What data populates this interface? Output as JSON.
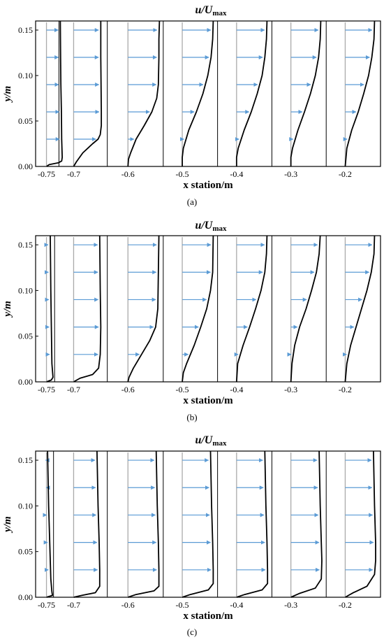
{
  "figure_panels": [
    {
      "id": "a",
      "caption": "(a)"
    },
    {
      "id": "b",
      "caption": "(b)"
    },
    {
      "id": "c",
      "caption": "(c)"
    }
  ],
  "colors": {
    "arrow": "#5b9bd5",
    "profile": "#000000",
    "baseline": "#aaaaaa",
    "axis": "#000000"
  },
  "chart_data": [
    {
      "type": "line",
      "title": "u/Umax",
      "xlabel": "x station/m",
      "ylabel": "y/m",
      "xlim": [
        -0.77,
        -0.135
      ],
      "ylim": [
        0,
        0.16
      ],
      "xticks": [
        -0.75,
        -0.7,
        -0.6,
        -0.5,
        -0.4,
        -0.3,
        -0.2
      ],
      "xtick_labels": [
        "-0.75",
        "-0.7",
        "-0.6",
        "-0.5",
        "-0.4",
        "-0.3",
        "-0.2"
      ],
      "yticks": [
        0,
        0.05,
        0.1,
        0.15
      ],
      "ytick_labels": [
        "0.00",
        "0.05",
        "0.10",
        "0.15"
      ],
      "arrow_heights": [
        0.03,
        0.06,
        0.09,
        0.12,
        0.15
      ],
      "dividers": [
        -0.727,
        -0.638,
        -0.535,
        -0.435,
        -0.335,
        -0.235
      ],
      "stations": [
        {
          "x0": -0.75,
          "points": [
            [
              0,
              -0.75
            ],
            [
              0.002,
              -0.745
            ],
            [
              0.004,
              -0.728
            ],
            [
              0.006,
              -0.722
            ],
            [
              0.01,
              -0.721
            ],
            [
              0.03,
              -0.722
            ],
            [
              0.06,
              -0.7225
            ],
            [
              0.09,
              -0.7235
            ],
            [
              0.12,
              -0.724
            ],
            [
              0.16,
              -0.7245
            ]
          ]
        },
        {
          "x0": -0.7,
          "points": [
            [
              0,
              -0.7
            ],
            [
              0.005,
              -0.695
            ],
            [
              0.015,
              -0.683
            ],
            [
              0.025,
              -0.665
            ],
            [
              0.03,
              -0.655
            ],
            [
              0.035,
              -0.651
            ],
            [
              0.045,
              -0.649
            ],
            [
              0.06,
              -0.649
            ],
            [
              0.09,
              -0.6495
            ],
            [
              0.12,
              -0.65
            ],
            [
              0.16,
              -0.65
            ]
          ]
        },
        {
          "x0": -0.6,
          "points": [
            [
              0,
              -0.6
            ],
            [
              0.008,
              -0.599
            ],
            [
              0.015,
              -0.595
            ],
            [
              0.03,
              -0.585
            ],
            [
              0.045,
              -0.57
            ],
            [
              0.06,
              -0.556
            ],
            [
              0.075,
              -0.547
            ],
            [
              0.09,
              -0.544
            ],
            [
              0.12,
              -0.543
            ],
            [
              0.14,
              -0.543
            ],
            [
              0.16,
              -0.542
            ]
          ]
        },
        {
          "x0": -0.5,
          "points": [
            [
              0,
              -0.5
            ],
            [
              0.01,
              -0.5
            ],
            [
              0.02,
              -0.498
            ],
            [
              0.04,
              -0.488
            ],
            [
              0.06,
              -0.474
            ],
            [
              0.08,
              -0.462
            ],
            [
              0.1,
              -0.453
            ],
            [
              0.12,
              -0.447
            ],
            [
              0.14,
              -0.444
            ],
            [
              0.16,
              -0.443
            ]
          ]
        },
        {
          "x0": -0.4,
          "points": [
            [
              0,
              -0.4
            ],
            [
              0.01,
              -0.4
            ],
            [
              0.02,
              -0.397
            ],
            [
              0.04,
              -0.386
            ],
            [
              0.06,
              -0.373
            ],
            [
              0.08,
              -0.362
            ],
            [
              0.1,
              -0.353
            ],
            [
              0.12,
              -0.348
            ],
            [
              0.14,
              -0.345
            ],
            [
              0.16,
              -0.344
            ]
          ]
        },
        {
          "x0": -0.3,
          "points": [
            [
              0,
              -0.3
            ],
            [
              0.01,
              -0.3
            ],
            [
              0.02,
              -0.297
            ],
            [
              0.04,
              -0.287
            ],
            [
              0.06,
              -0.275
            ],
            [
              0.08,
              -0.264
            ],
            [
              0.1,
              -0.255
            ],
            [
              0.12,
              -0.249
            ],
            [
              0.14,
              -0.246
            ],
            [
              0.16,
              -0.245
            ]
          ]
        },
        {
          "x0": -0.2,
          "points": [
            [
              0,
              -0.2
            ],
            [
              0.02,
              -0.197
            ],
            [
              0.04,
              -0.188
            ],
            [
              0.06,
              -0.176
            ],
            [
              0.08,
              -0.166
            ],
            [
              0.1,
              -0.157
            ],
            [
              0.12,
              -0.151
            ],
            [
              0.14,
              -0.147
            ],
            [
              0.16,
              -0.146
            ]
          ]
        }
      ]
    },
    {
      "type": "line",
      "title": "u/Umax",
      "xlabel": "x station/m",
      "ylabel": "y/m",
      "xlim": [
        -0.77,
        -0.135
      ],
      "ylim": [
        0,
        0.16
      ],
      "xticks": [
        -0.75,
        -0.7,
        -0.6,
        -0.5,
        -0.4,
        -0.3,
        -0.2
      ],
      "xtick_labels": [
        "-0.75",
        "-0.7",
        "-0.6",
        "-0.5",
        "-0.4",
        "-0.3",
        "-0.2"
      ],
      "yticks": [
        0,
        0.05,
        0.1,
        0.15
      ],
      "ytick_labels": [
        "0.00",
        "0.05",
        "0.10",
        "0.15"
      ],
      "arrow_heights": [
        0.03,
        0.06,
        0.09,
        0.12,
        0.15
      ],
      "dividers": [
        -0.735,
        -0.638,
        -0.535,
        -0.435,
        -0.335,
        -0.235
      ],
      "stations": [
        {
          "x0": -0.75,
          "points": [
            [
              0,
              -0.75
            ],
            [
              0.002,
              -0.741
            ],
            [
              0.005,
              -0.738
            ],
            [
              0.02,
              -0.74
            ],
            [
              0.06,
              -0.741
            ],
            [
              0.1,
              -0.742
            ],
            [
              0.16,
              -0.743
            ]
          ]
        },
        {
          "x0": -0.7,
          "points": [
            [
              0,
              -0.7
            ],
            [
              0.004,
              -0.688
            ],
            [
              0.008,
              -0.665
            ],
            [
              0.015,
              -0.654
            ],
            [
              0.03,
              -0.651
            ],
            [
              0.06,
              -0.65
            ],
            [
              0.1,
              -0.651
            ],
            [
              0.16,
              -0.652
            ]
          ]
        },
        {
          "x0": -0.6,
          "points": [
            [
              0,
              -0.6
            ],
            [
              0.005,
              -0.598
            ],
            [
              0.015,
              -0.59
            ],
            [
              0.03,
              -0.575
            ],
            [
              0.045,
              -0.56
            ],
            [
              0.06,
              -0.549
            ],
            [
              0.08,
              -0.545
            ],
            [
              0.12,
              -0.544
            ],
            [
              0.16,
              -0.543
            ]
          ]
        },
        {
          "x0": -0.5,
          "points": [
            [
              0,
              -0.5
            ],
            [
              0.01,
              -0.498
            ],
            [
              0.02,
              -0.492
            ],
            [
              0.04,
              -0.478
            ],
            [
              0.06,
              -0.466
            ],
            [
              0.08,
              -0.455
            ],
            [
              0.1,
              -0.448
            ],
            [
              0.12,
              -0.444
            ],
            [
              0.16,
              -0.443
            ]
          ]
        },
        {
          "x0": -0.4,
          "points": [
            [
              0,
              -0.4
            ],
            [
              0.02,
              -0.398
            ],
            [
              0.04,
              -0.388
            ],
            [
              0.06,
              -0.376
            ],
            [
              0.08,
              -0.365
            ],
            [
              0.1,
              -0.355
            ],
            [
              0.12,
              -0.348
            ],
            [
              0.14,
              -0.345
            ],
            [
              0.16,
              -0.344
            ]
          ]
        },
        {
          "x0": -0.3,
          "points": [
            [
              0,
              -0.3
            ],
            [
              0.02,
              -0.298
            ],
            [
              0.04,
              -0.293
            ],
            [
              0.06,
              -0.284
            ],
            [
              0.08,
              -0.272
            ],
            [
              0.1,
              -0.262
            ],
            [
              0.12,
              -0.253
            ],
            [
              0.14,
              -0.248
            ],
            [
              0.16,
              -0.246
            ]
          ]
        },
        {
          "x0": -0.2,
          "points": [
            [
              0,
              -0.2
            ],
            [
              0.02,
              -0.197
            ],
            [
              0.04,
              -0.19
            ],
            [
              0.06,
              -0.18
            ],
            [
              0.08,
              -0.17
            ],
            [
              0.1,
              -0.16
            ],
            [
              0.12,
              -0.152
            ],
            [
              0.14,
              -0.147
            ],
            [
              0.16,
              -0.146
            ]
          ]
        }
      ]
    },
    {
      "type": "line",
      "title": "u/Umax",
      "xlabel": "x station/m",
      "ylabel": "y/m",
      "xlim": [
        -0.77,
        -0.135
      ],
      "ylim": [
        0,
        0.16
      ],
      "xticks": [
        -0.75,
        -0.7,
        -0.6,
        -0.5,
        -0.4,
        -0.3,
        -0.2
      ],
      "xtick_labels": [
        "-0.75",
        "-0.7",
        "-0.6",
        "-0.5",
        "-0.4",
        "-0.3",
        "-0.2"
      ],
      "yticks": [
        0,
        0.05,
        0.1,
        0.15
      ],
      "ytick_labels": [
        "0.00",
        "0.05",
        "0.10",
        "0.15"
      ],
      "arrow_heights": [
        0.03,
        0.06,
        0.09,
        0.12,
        0.15
      ],
      "dividers": [
        -0.737,
        -0.638,
        -0.535,
        -0.435,
        -0.335,
        -0.235
      ],
      "stations": [
        {
          "x0": -0.75,
          "points": [
            [
              0,
              -0.75
            ],
            [
              0.002,
              -0.739
            ],
            [
              0.006,
              -0.74
            ],
            [
              0.02,
              -0.742
            ],
            [
              0.06,
              -0.744
            ],
            [
              0.1,
              -0.746
            ],
            [
              0.16,
              -0.748
            ]
          ]
        },
        {
          "x0": -0.7,
          "points": [
            [
              0,
              -0.7
            ],
            [
              0.002,
              -0.685
            ],
            [
              0.005,
              -0.66
            ],
            [
              0.012,
              -0.652
            ],
            [
              0.03,
              -0.652
            ],
            [
              0.06,
              -0.653
            ],
            [
              0.1,
              -0.655
            ],
            [
              0.16,
              -0.657
            ]
          ]
        },
        {
          "x0": -0.6,
          "points": [
            [
              0,
              -0.6
            ],
            [
              0.003,
              -0.585
            ],
            [
              0.007,
              -0.552
            ],
            [
              0.012,
              -0.543
            ],
            [
              0.03,
              -0.543
            ],
            [
              0.06,
              -0.544
            ],
            [
              0.1,
              -0.546
            ],
            [
              0.16,
              -0.548
            ]
          ]
        },
        {
          "x0": -0.5,
          "points": [
            [
              0,
              -0.5
            ],
            [
              0.003,
              -0.485
            ],
            [
              0.008,
              -0.452
            ],
            [
              0.015,
              -0.443
            ],
            [
              0.03,
              -0.443
            ],
            [
              0.06,
              -0.444
            ],
            [
              0.1,
              -0.446
            ],
            [
              0.16,
              -0.448
            ]
          ]
        },
        {
          "x0": -0.4,
          "points": [
            [
              0,
              -0.4
            ],
            [
              0.003,
              -0.385
            ],
            [
              0.008,
              -0.353
            ],
            [
              0.015,
              -0.343
            ],
            [
              0.03,
              -0.343
            ],
            [
              0.06,
              -0.344
            ],
            [
              0.1,
              -0.346
            ],
            [
              0.16,
              -0.348
            ]
          ]
        },
        {
          "x0": -0.3,
          "points": [
            [
              0,
              -0.3
            ],
            [
              0.004,
              -0.285
            ],
            [
              0.01,
              -0.255
            ],
            [
              0.02,
              -0.244
            ],
            [
              0.04,
              -0.243
            ],
            [
              0.06,
              -0.244
            ],
            [
              0.1,
              -0.246
            ],
            [
              0.16,
              -0.248
            ]
          ]
        },
        {
          "x0": -0.2,
          "points": [
            [
              0,
              -0.2
            ],
            [
              0.005,
              -0.185
            ],
            [
              0.012,
              -0.16
            ],
            [
              0.025,
              -0.146
            ],
            [
              0.04,
              -0.144
            ],
            [
              0.06,
              -0.144
            ],
            [
              0.1,
              -0.146
            ],
            [
              0.16,
              -0.148
            ]
          ]
        }
      ]
    }
  ]
}
